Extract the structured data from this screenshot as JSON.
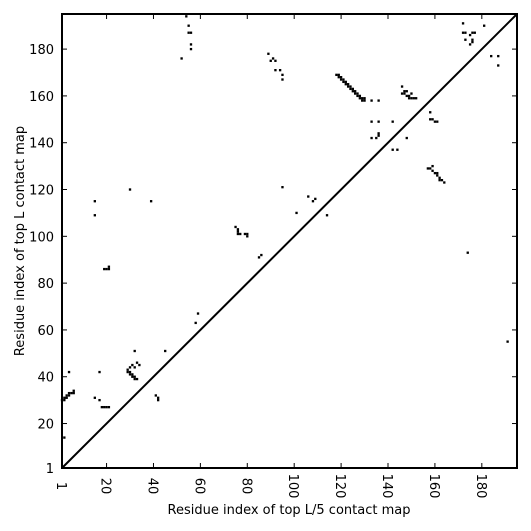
{
  "chart_data": {
    "type": "scatter",
    "title": "",
    "xlabel": "Residue index of top L/5 contact map",
    "ylabel": "Residue index of top L contact map",
    "xlim": [
      1,
      195
    ],
    "ylim": [
      1,
      195
    ],
    "x_ticks": [
      1,
      20,
      40,
      60,
      80,
      100,
      120,
      140,
      160,
      180
    ],
    "y_ticks": [
      1,
      20,
      40,
      60,
      80,
      100,
      120,
      140,
      160,
      180
    ],
    "diagonal": {
      "from": [
        1,
        1
      ],
      "to": [
        195,
        195
      ]
    },
    "grid": false,
    "legend": "none",
    "marker_color": "#000000",
    "points": [
      [
        1,
        30
      ],
      [
        2,
        30
      ],
      [
        2,
        31
      ],
      [
        3,
        31
      ],
      [
        3,
        32
      ],
      [
        4,
        32
      ],
      [
        4,
        33
      ],
      [
        5,
        33
      ],
      [
        6,
        33
      ],
      [
        6,
        34
      ],
      [
        4,
        42
      ],
      [
        2,
        14
      ],
      [
        15,
        109
      ],
      [
        15,
        115
      ],
      [
        15,
        31
      ],
      [
        17,
        42
      ],
      [
        17,
        30
      ],
      [
        18,
        27
      ],
      [
        19,
        27
      ],
      [
        20,
        27
      ],
      [
        21,
        27
      ],
      [
        19,
        86
      ],
      [
        20,
        86
      ],
      [
        21,
        86
      ],
      [
        21,
        87
      ],
      [
        29,
        43
      ],
      [
        29,
        42
      ],
      [
        30,
        41
      ],
      [
        30,
        42
      ],
      [
        31,
        40
      ],
      [
        31,
        41
      ],
      [
        32,
        39
      ],
      [
        32,
        40
      ],
      [
        33,
        39
      ],
      [
        30,
        44
      ],
      [
        31,
        45
      ],
      [
        32,
        44
      ],
      [
        33,
        46
      ],
      [
        34,
        45
      ],
      [
        32,
        51
      ],
      [
        30,
        120
      ],
      [
        39,
        115
      ],
      [
        41,
        32
      ],
      [
        42,
        31
      ],
      [
        42,
        30
      ],
      [
        45,
        51
      ],
      [
        52,
        176
      ],
      [
        54,
        194
      ],
      [
        55,
        190
      ],
      [
        55,
        187
      ],
      [
        56,
        187
      ],
      [
        56,
        182
      ],
      [
        56,
        180
      ],
      [
        58,
        63
      ],
      [
        59,
        67
      ],
      [
        75,
        104
      ],
      [
        76,
        103
      ],
      [
        76,
        102
      ],
      [
        76,
        101
      ],
      [
        77,
        101
      ],
      [
        79,
        101
      ],
      [
        80,
        101
      ],
      [
        80,
        100
      ],
      [
        85,
        91
      ],
      [
        86,
        92
      ],
      [
        89,
        178
      ],
      [
        90,
        175
      ],
      [
        91,
        176
      ],
      [
        92,
        175
      ],
      [
        92,
        171
      ],
      [
        94,
        171
      ],
      [
        95,
        169
      ],
      [
        95,
        167
      ],
      [
        95,
        121
      ],
      [
        101,
        110
      ],
      [
        106,
        117
      ],
      [
        108,
        115
      ],
      [
        109,
        116
      ],
      [
        114,
        109
      ],
      [
        118,
        169
      ],
      [
        119,
        169
      ],
      [
        119,
        168
      ],
      [
        120,
        168
      ],
      [
        120,
        167
      ],
      [
        121,
        167
      ],
      [
        121,
        166
      ],
      [
        122,
        166
      ],
      [
        122,
        165
      ],
      [
        123,
        165
      ],
      [
        123,
        164
      ],
      [
        124,
        164
      ],
      [
        124,
        163
      ],
      [
        125,
        163
      ],
      [
        125,
        162
      ],
      [
        126,
        162
      ],
      [
        126,
        161
      ],
      [
        127,
        161
      ],
      [
        127,
        160
      ],
      [
        128,
        160
      ],
      [
        128,
        159
      ],
      [
        129,
        159
      ],
      [
        129,
        158
      ],
      [
        130,
        159
      ],
      [
        130,
        158
      ],
      [
        133,
        158
      ],
      [
        133,
        149
      ],
      [
        133,
        142
      ],
      [
        136,
        158
      ],
      [
        136,
        149
      ],
      [
        136,
        144
      ],
      [
        136,
        143
      ],
      [
        135,
        142
      ],
      [
        142,
        149
      ],
      [
        142,
        137
      ],
      [
        144,
        137
      ],
      [
        146,
        164
      ],
      [
        146,
        161
      ],
      [
        147,
        162
      ],
      [
        147,
        161
      ],
      [
        148,
        162
      ],
      [
        148,
        160
      ],
      [
        149,
        160
      ],
      [
        149,
        159
      ],
      [
        150,
        161
      ],
      [
        150,
        159
      ],
      [
        151,
        159
      ],
      [
        152,
        159
      ],
      [
        148,
        142
      ],
      [
        158,
        153
      ],
      [
        158,
        150
      ],
      [
        159,
        150
      ],
      [
        160,
        149
      ],
      [
        161,
        149
      ],
      [
        157,
        129
      ],
      [
        158,
        129
      ],
      [
        159,
        128
      ],
      [
        160,
        127
      ],
      [
        161,
        127
      ],
      [
        161,
        126
      ],
      [
        162,
        125
      ],
      [
        162,
        124
      ],
      [
        163,
        124
      ],
      [
        164,
        123
      ],
      [
        159,
        130
      ],
      [
        172,
        191
      ],
      [
        172,
        187
      ],
      [
        173,
        187
      ],
      [
        173,
        184
      ],
      [
        175,
        186
      ],
      [
        175,
        182
      ],
      [
        176,
        187
      ],
      [
        176,
        184
      ],
      [
        176,
        183
      ],
      [
        177,
        187
      ],
      [
        174,
        93
      ],
      [
        181,
        190
      ],
      [
        184,
        177
      ],
      [
        187,
        177
      ],
      [
        187,
        173
      ],
      [
        191,
        55
      ]
    ]
  }
}
